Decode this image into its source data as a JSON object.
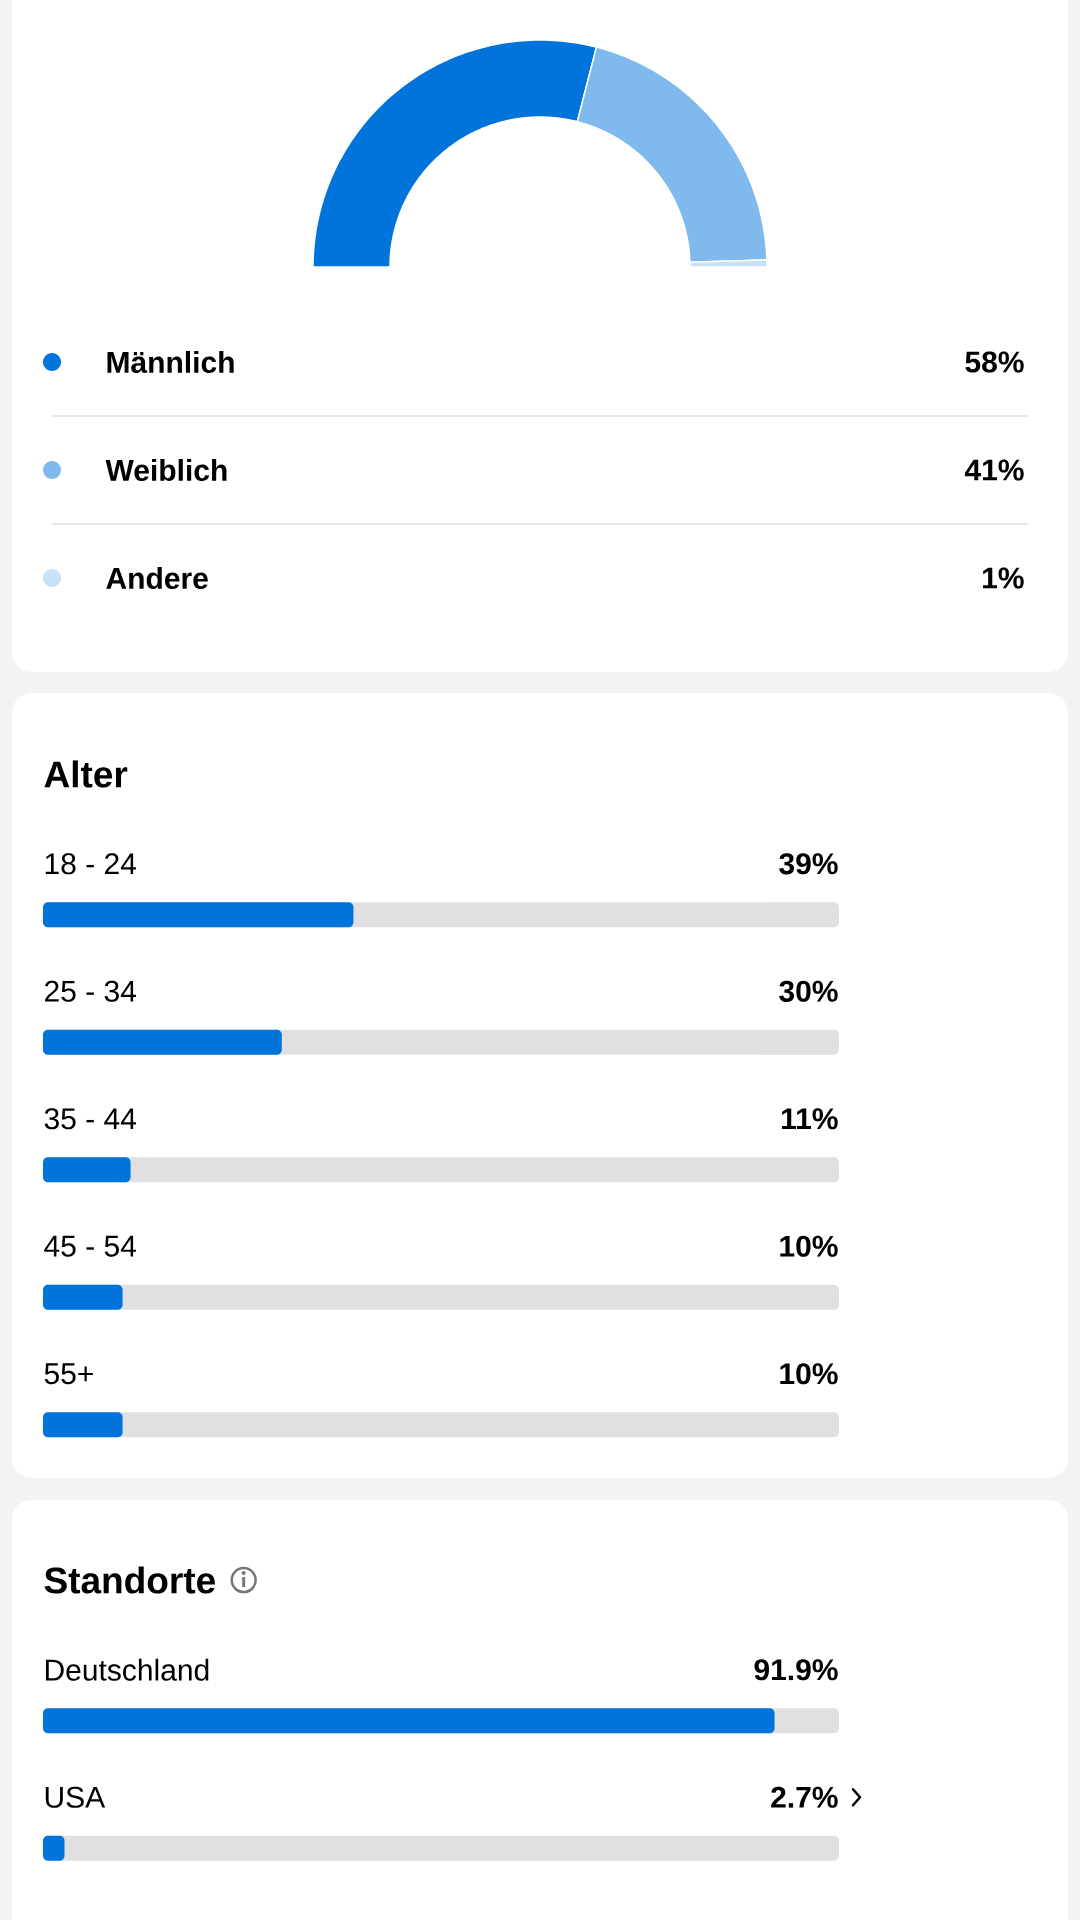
{
  "chart_data": [
    {
      "type": "donut",
      "categories": [
        "Männlich",
        "Weiblich",
        "Andere"
      ],
      "values": [
        58,
        41,
        1
      ],
      "colors": [
        "#0174db",
        "#80b9ee",
        "#c9e1f7"
      ],
      "value_labels": [
        "58%",
        "41%",
        "1%"
      ],
      "legend": "bottom"
    },
    {
      "type": "bar",
      "title": "Alter",
      "orientation": "horizontal",
      "categories": [
        "18 - 24",
        "25 - 34",
        "35 - 44",
        "45 - 54",
        "55+"
      ],
      "values": [
        39,
        30,
        11,
        10,
        10
      ],
      "color": "#0174db",
      "value_labels": [
        "39%",
        "30%",
        "11%",
        "10%",
        "10%"
      ],
      "xlim": [
        0,
        100
      ],
      "tick_labels": false
    },
    {
      "type": "bar",
      "title": "Standorte",
      "orientation": "horizontal",
      "categories": [
        "Deutschland",
        "USA"
      ],
      "values": [
        91.9,
        2.7
      ],
      "color": "#0174db",
      "value_labels": [
        "91.9%",
        "2.7%"
      ],
      "xlim": [
        0,
        100
      ],
      "tick_labels": false
    }
  ]
}
